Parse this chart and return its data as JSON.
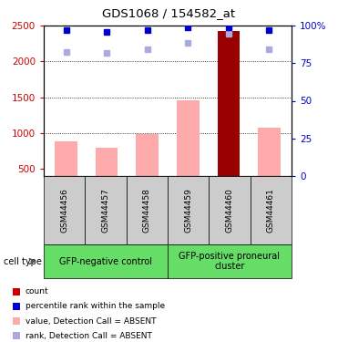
{
  "title": "GDS1068 / 154582_at",
  "samples": [
    "GSM44456",
    "GSM44457",
    "GSM44458",
    "GSM44459",
    "GSM44460",
    "GSM44461"
  ],
  "bar_values": [
    880,
    790,
    990,
    1460,
    2430,
    1080
  ],
  "bar_colors": [
    "#ffaaaa",
    "#ffaaaa",
    "#ffaaaa",
    "#ffaaaa",
    "#990000",
    "#ffaaaa"
  ],
  "rank_values": [
    2130,
    2120,
    2165,
    2260,
    2390,
    2170
  ],
  "percentile_values": [
    97,
    96,
    97,
    99,
    99,
    97
  ],
  "ylim_left": [
    400,
    2500
  ],
  "ylim_right": [
    0,
    100
  ],
  "yticks_left": [
    500,
    1000,
    1500,
    2000,
    2500
  ],
  "yticks_right": [
    0,
    25,
    50,
    75,
    100
  ],
  "ytick_labels_right": [
    "0",
    "25",
    "50",
    "75",
    "100%"
  ],
  "group1_label": "GFP-negative control",
  "group2_label": "GFP-positive proneural\ncluster",
  "legend_items": [
    {
      "color": "#cc0000",
      "label": "count"
    },
    {
      "color": "#0000cc",
      "label": "percentile rank within the sample"
    },
    {
      "color": "#ffaaaa",
      "label": "value, Detection Call = ABSENT"
    },
    {
      "color": "#aaaadd",
      "label": "rank, Detection Call = ABSENT"
    }
  ],
  "cell_type_label": "cell type",
  "group1_color": "#66dd66",
  "group2_color": "#66dd66",
  "sample_box_color": "#cccccc",
  "left_axis_color": "#cc0000",
  "right_axis_color": "#0000cc",
  "bar_bottom": 400,
  "figwidth": 3.71,
  "figheight": 3.75,
  "dpi": 100
}
